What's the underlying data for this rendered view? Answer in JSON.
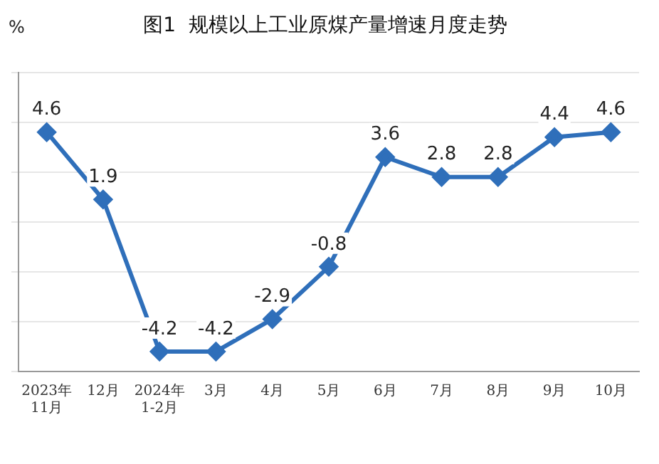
{
  "chart_data": {
    "type": "line",
    "title": "图1  规模以上工业原煤产量增速月度走势",
    "ylabel": "%",
    "categories": [
      "2023年\n11月",
      "12月",
      "2024年\n1-2月",
      "3月",
      "4月",
      "5月",
      "6月",
      "7月",
      "8月",
      "9月",
      "10月"
    ],
    "series": [
      {
        "color": "#2f6fba",
        "values": [
          4.6,
          1.9,
          -4.2,
          -4.2,
          -2.9,
          -0.8,
          3.6,
          2.8,
          2.8,
          4.4,
          4.6
        ]
      }
    ],
    "ylim": [
      -5,
      7
    ],
    "yticks": [
      {
        "value": -5,
        "label": null
      },
      {
        "value": -3,
        "label": null
      },
      {
        "value": -1,
        "label": null
      },
      {
        "value": 1,
        "label": null
      },
      {
        "value": 3,
        "label": null
      },
      {
        "value": 5,
        "label": null
      },
      {
        "value": 7,
        "label": null
      }
    ],
    "tick_labels": "x",
    "grid": "y",
    "legend": false,
    "marker": "diamond",
    "line_style": "solid",
    "data_labels": true
  }
}
